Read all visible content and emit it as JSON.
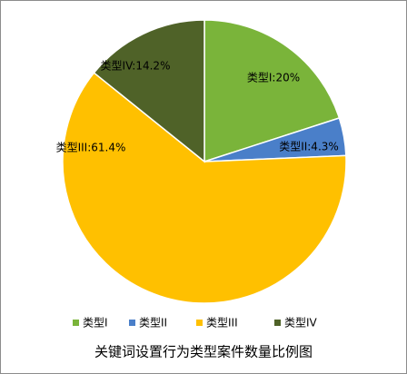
{
  "chart_data": {
    "type": "pie",
    "title": "关键词设置行为类型案件数量比例图",
    "categories": [
      "类型I",
      "类型II",
      "类型III",
      "类型IV"
    ],
    "values": [
      20,
      4.3,
      61.4,
      14.2
    ],
    "value_labels": [
      "类型I:20%",
      "类型II:4.3%",
      "类型III:61.4%",
      "类型IV:14.2%"
    ],
    "colors": [
      "#7ab43a",
      "#4a7fc9",
      "#ffc000",
      "#4f6228"
    ]
  }
}
